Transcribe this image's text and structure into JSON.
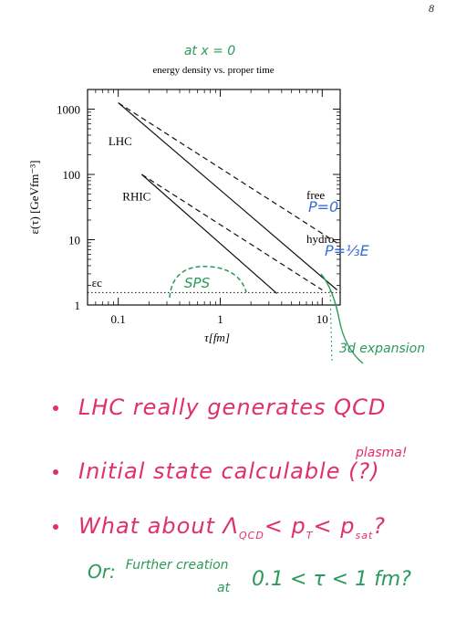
{
  "page_number": "8",
  "chart_data": {
    "type": "line",
    "title": "energy density vs. proper time",
    "title_annotation": "at x = 0",
    "xlabel": "τ[fm]",
    "ylabel": "ε(τ) [GeVfm⁻³]",
    "xscale": "log",
    "yscale": "log",
    "xlim": [
      0.05,
      15
    ],
    "ylim": [
      1,
      2000
    ],
    "x_ticks": [
      {
        "value": 0.1,
        "label": "0.1"
      },
      {
        "value": 1,
        "label": "1"
      },
      {
        "value": 10,
        "label": "10"
      }
    ],
    "y_ticks": [
      {
        "value": 1,
        "label": "1"
      },
      {
        "value": 10,
        "label": "10"
      },
      {
        "value": 100,
        "label": "100"
      },
      {
        "value": 1000,
        "label": "1000"
      }
    ],
    "series": [
      {
        "name": "LHC free",
        "style": "dashed",
        "x": [
          0.1,
          14
        ],
        "y": [
          1250,
          8.9
        ]
      },
      {
        "name": "LHC hydro",
        "style": "solid",
        "x": [
          0.1,
          14
        ],
        "y": [
          1250,
          1.7
        ]
      },
      {
        "name": "RHIC free",
        "style": "dashed",
        "x": [
          0.17,
          10
        ],
        "y": [
          100,
          1.7
        ]
      },
      {
        "name": "RHIC hydro",
        "style": "solid",
        "x": [
          0.17,
          3.6
        ],
        "y": [
          100,
          1.5
        ]
      },
      {
        "name": "ε_c",
        "style": "dotted",
        "x": [
          0.05,
          15
        ],
        "y": [
          1.55,
          1.55
        ]
      }
    ],
    "annotations": [
      {
        "text": "LHC",
        "x": 0.08,
        "y": 280
      },
      {
        "text": "RHIC",
        "x": 0.11,
        "y": 40
      },
      {
        "text": "free",
        "x": 7,
        "y": 42
      },
      {
        "text": "hydro",
        "x": 7,
        "y": 9
      },
      {
        "text": "εc",
        "x": 0.055,
        "y": 1.9
      }
    ],
    "handwritten": {
      "free_eq": "P=0",
      "hydro_eq": "P=⅓E",
      "sps": "SPS",
      "expansion": "3d expansion"
    }
  },
  "notes": {
    "bullet1": "LHC really generates QCD",
    "bullet1_cont": "plasma!",
    "bullet2": "Initial state calculable (?)",
    "bullet3_a": "What about Λ",
    "bullet3_sub": "QCD",
    "bullet3_b": "< p",
    "bullet3_sub2": "T",
    "bullet3_c": "< p",
    "bullet3_sub3": "sat",
    "bullet3_d": "?",
    "further_or": "Or:",
    "further_1": "Further creation",
    "further_at": "at",
    "further_2": "0.1 < τ < 1 fm?"
  }
}
